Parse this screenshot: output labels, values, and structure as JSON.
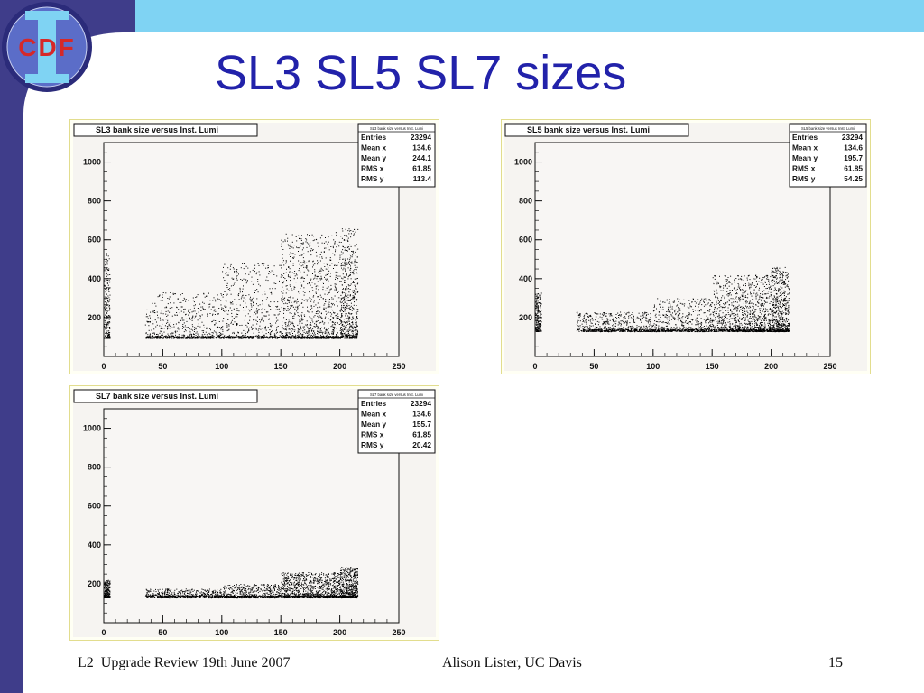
{
  "slide": {
    "title": "SL3 SL5 SL7 sizes",
    "logo_text": "CDF",
    "footer_left": "L2  Upgrade Review 19th June 2007",
    "footer_center": "Alison Lister, UC Davis",
    "page_number": "15"
  },
  "colors": {
    "title": "#2222aa",
    "sidebar": "#3f3d8a",
    "topbar": "#7fd3f3",
    "panel_border": "#e2dd8e",
    "plot_background": "#f6f4f1"
  },
  "chart_data": [
    {
      "type": "scatter",
      "title": "SL3 bank size versus Inst. Lumi",
      "xlim": [
        0,
        250
      ],
      "ylim": [
        0,
        1100
      ],
      "x_ticks": [
        0,
        50,
        100,
        150,
        200,
        250
      ],
      "y_ticks": [
        200,
        400,
        600,
        800,
        1000
      ],
      "legend_position": "top-right",
      "stats": {
        "title": "SL3 bank size versus Inst. Lumi",
        "rows": [
          {
            "label": "Entries",
            "value": "23294"
          },
          {
            "label": "Mean x",
            "value": "134.6"
          },
          {
            "label": "Mean y",
            "value": "244.1"
          },
          {
            "label": "RMS x",
            "value": "61.85"
          },
          {
            "label": "RMS y",
            "value": "113.4"
          }
        ]
      },
      "distribution": {
        "baseline_y": 95,
        "clusters": [
          {
            "x_range": [
              0,
              5
            ],
            "y_range": [
              95,
              560
            ],
            "weight": 0.08
          },
          {
            "x_range": [
              35,
              100
            ],
            "y_range": [
              95,
              330
            ],
            "weight": 0.18
          },
          {
            "x_range": [
              100,
              150
            ],
            "y_range": [
              95,
              480
            ],
            "weight": 0.18
          },
          {
            "x_range": [
              150,
              200
            ],
            "y_range": [
              95,
              640
            ],
            "weight": 0.36
          },
          {
            "x_range": [
              200,
              215
            ],
            "y_range": [
              95,
              660
            ],
            "weight": 0.2
          }
        ]
      }
    },
    {
      "type": "scatter",
      "title": "SL5 bank size versus Inst. Lumi",
      "xlim": [
        0,
        250
      ],
      "ylim": [
        0,
        1100
      ],
      "x_ticks": [
        0,
        50,
        100,
        150,
        200,
        250
      ],
      "y_ticks": [
        200,
        400,
        600,
        800,
        1000
      ],
      "legend_position": "top-right",
      "stats": {
        "title": "SL5 bank size versus Inst. Lumi",
        "rows": [
          {
            "label": "Entries",
            "value": "23294"
          },
          {
            "label": "Mean x",
            "value": "134.6"
          },
          {
            "label": "Mean y",
            "value": "195.7"
          },
          {
            "label": "RMS x",
            "value": "61.85"
          },
          {
            "label": "RMS y",
            "value": "54.25"
          }
        ]
      },
      "distribution": {
        "baseline_y": 130,
        "clusters": [
          {
            "x_range": [
              0,
              5
            ],
            "y_range": [
              130,
              330
            ],
            "weight": 0.08
          },
          {
            "x_range": [
              35,
              100
            ],
            "y_range": [
              130,
              230
            ],
            "weight": 0.18
          },
          {
            "x_range": [
              100,
              150
            ],
            "y_range": [
              130,
              300
            ],
            "weight": 0.18
          },
          {
            "x_range": [
              150,
              200
            ],
            "y_range": [
              130,
              420
            ],
            "weight": 0.36
          },
          {
            "x_range": [
              200,
              215
            ],
            "y_range": [
              130,
              460
            ],
            "weight": 0.2
          }
        ]
      }
    },
    {
      "type": "scatter",
      "title": "SL7 bank size versus Inst. Lumi",
      "xlim": [
        0,
        250
      ],
      "ylim": [
        0,
        1100
      ],
      "x_ticks": [
        0,
        50,
        100,
        150,
        200,
        250
      ],
      "y_ticks": [
        200,
        400,
        600,
        800,
        1000
      ],
      "legend_position": "top-right",
      "stats": {
        "title": "SL7 bank size versus Inst. Lumi",
        "rows": [
          {
            "label": "Entries",
            "value": "23294"
          },
          {
            "label": "Mean x",
            "value": "134.6"
          },
          {
            "label": "Mean y",
            "value": "155.7"
          },
          {
            "label": "RMS x",
            "value": "61.85"
          },
          {
            "label": "RMS y",
            "value": "20.42"
          }
        ]
      },
      "distribution": {
        "baseline_y": 130,
        "clusters": [
          {
            "x_range": [
              0,
              5
            ],
            "y_range": [
              130,
              220
            ],
            "weight": 0.08
          },
          {
            "x_range": [
              35,
              100
            ],
            "y_range": [
              130,
              175
            ],
            "weight": 0.18
          },
          {
            "x_range": [
              100,
              150
            ],
            "y_range": [
              130,
              200
            ],
            "weight": 0.18
          },
          {
            "x_range": [
              150,
              200
            ],
            "y_range": [
              130,
              260
            ],
            "weight": 0.36
          },
          {
            "x_range": [
              200,
              215
            ],
            "y_range": [
              130,
              290
            ],
            "weight": 0.2
          }
        ]
      }
    }
  ]
}
